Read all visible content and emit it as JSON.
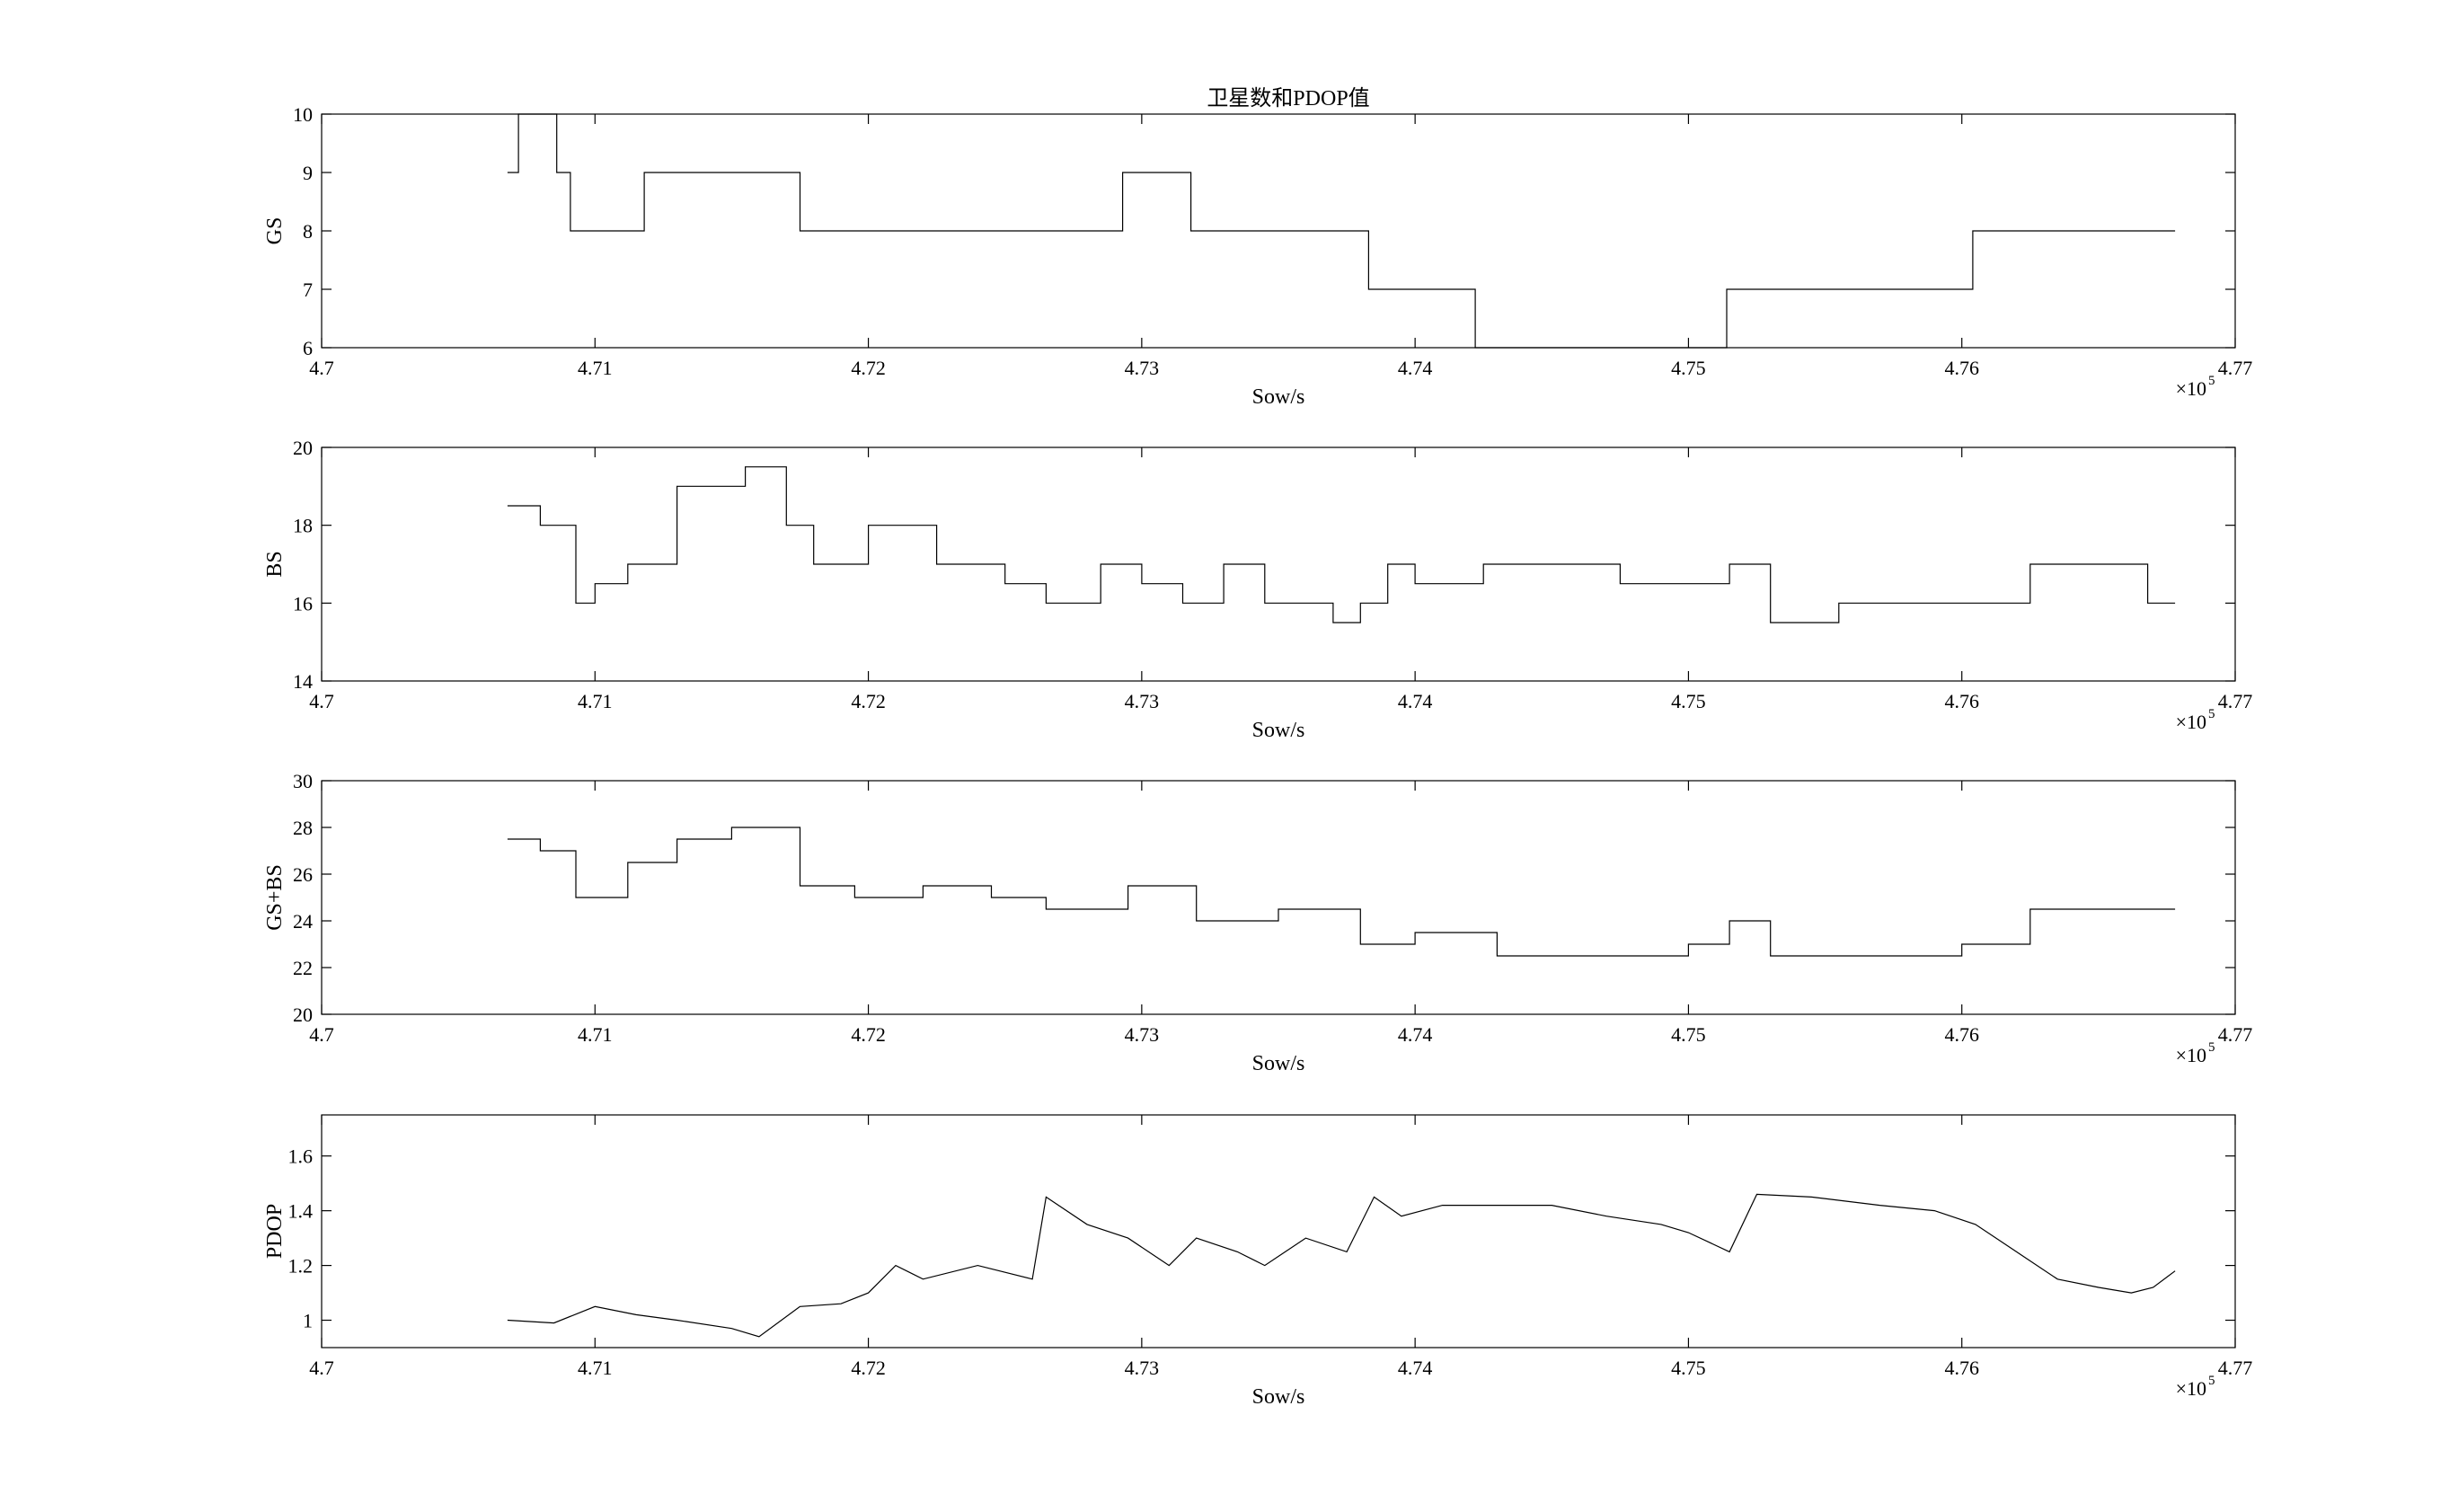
{
  "figure": {
    "title": "卫星数和PDOP值"
  },
  "chart_data": [
    {
      "type": "line",
      "id": "gs",
      "title": "卫星数和PDOP值",
      "xlabel": "Sow/s",
      "ylabel": "GS",
      "x_exponent_label": "×10",
      "x_exponent": "5",
      "xlim": [
        4.7,
        4.77
      ],
      "ylim": [
        6,
        10
      ],
      "xticks": [
        "4.7",
        "4.71",
        "4.72",
        "4.73",
        "4.74",
        "4.75",
        "4.76",
        "4.77"
      ],
      "yticks": [
        "6",
        "7",
        "8",
        "9",
        "10"
      ],
      "grid": false,
      "series": [
        {
          "x": [
            4.7068,
            4.7072,
            4.7072,
            4.7086,
            4.7086,
            4.7091,
            4.7091,
            4.7118,
            4.7118,
            4.7175,
            4.7175,
            4.7293,
            4.7293,
            4.7318,
            4.7318,
            4.7383,
            4.7383,
            4.7422,
            4.7422,
            4.7514,
            4.7514,
            4.7604,
            4.7604,
            4.7678
          ],
          "y": [
            9,
            9,
            10,
            10,
            9,
            9,
            8,
            8,
            9,
            9,
            8,
            8,
            9,
            9,
            8,
            8,
            7,
            7,
            6,
            6,
            7,
            7,
            8,
            8
          ]
        }
      ]
    },
    {
      "type": "line",
      "id": "bs",
      "xlabel": "Sow/s",
      "ylabel": "BS",
      "x_exponent_label": "×10",
      "x_exponent": "5",
      "xlim": [
        4.7,
        4.77
      ],
      "ylim": [
        14,
        20
      ],
      "xticks": [
        "4.7",
        "4.71",
        "4.72",
        "4.73",
        "4.74",
        "4.75",
        "4.76",
        "4.77"
      ],
      "yticks": [
        "14",
        "16",
        "18",
        "20"
      ],
      "grid": false,
      "series": [
        {
          "x": [
            4.7068,
            4.708,
            4.708,
            4.7093,
            4.7093,
            4.71,
            4.71,
            4.7112,
            4.7112,
            4.713,
            4.713,
            4.7155,
            4.7155,
            4.717,
            4.717,
            4.718,
            4.718,
            4.72,
            4.72,
            4.7225,
            4.7225,
            4.725,
            4.725,
            4.7265,
            4.7265,
            4.7285,
            4.7285,
            4.73,
            4.73,
            4.7315,
            4.7315,
            4.733,
            4.733,
            4.7345,
            4.7345,
            4.737,
            4.737,
            4.738,
            4.738,
            4.739,
            4.739,
            4.74,
            4.74,
            4.7425,
            4.7425,
            4.745,
            4.745,
            4.7475,
            4.7475,
            4.7515,
            4.7515,
            4.753,
            4.753,
            4.7555,
            4.7555,
            4.7595,
            4.7595,
            4.7625,
            4.7625,
            4.7655,
            4.7655,
            4.7668,
            4.7668,
            4.7678
          ],
          "y": [
            18.5,
            18.5,
            18,
            18,
            16,
            16,
            16.5,
            16.5,
            17,
            17,
            19,
            19,
            19.5,
            19.5,
            18,
            18,
            17,
            17,
            18,
            18,
            17,
            17,
            16.5,
            16.5,
            16,
            16,
            17,
            17,
            16.5,
            16.5,
            16,
            16,
            17,
            17,
            16,
            16,
            15.5,
            15.5,
            16,
            16,
            17,
            17,
            16.5,
            16.5,
            17,
            17,
            17,
            17,
            16.5,
            16.5,
            17,
            17,
            15.5,
            15.5,
            16,
            16,
            16,
            16,
            17,
            17,
            17,
            17,
            16,
            16
          ]
        }
      ]
    },
    {
      "type": "line",
      "id": "gs_bs",
      "xlabel": "Sow/s",
      "ylabel": "GS+BS",
      "x_exponent_label": "×10",
      "x_exponent": "5",
      "xlim": [
        4.7,
        4.77
      ],
      "ylim": [
        20,
        30
      ],
      "xticks": [
        "4.7",
        "4.71",
        "4.72",
        "4.73",
        "4.74",
        "4.75",
        "4.76",
        "4.77"
      ],
      "yticks": [
        "20",
        "22",
        "24",
        "26",
        "28",
        "30"
      ],
      "grid": false,
      "series": [
        {
          "x": [
            4.7068,
            4.708,
            4.708,
            4.7093,
            4.7093,
            4.7112,
            4.7112,
            4.713,
            4.713,
            4.715,
            4.715,
            4.7175,
            4.7175,
            4.7195,
            4.7195,
            4.722,
            4.722,
            4.7245,
            4.7245,
            4.7265,
            4.7265,
            4.7295,
            4.7295,
            4.732,
            4.732,
            4.735,
            4.735,
            4.738,
            4.738,
            4.74,
            4.74,
            4.743,
            4.743,
            4.75,
            4.75,
            4.7515,
            4.7515,
            4.753,
            4.753,
            4.76,
            4.76,
            4.7625,
            4.7625,
            4.7678
          ],
          "y": [
            27.5,
            27.5,
            27,
            27,
            25,
            25,
            26.5,
            26.5,
            27.5,
            27.5,
            28,
            28,
            25.5,
            25.5,
            25,
            25,
            25.5,
            25.5,
            25,
            25,
            24.5,
            24.5,
            25.5,
            25.5,
            24,
            24,
            24.5,
            24.5,
            23,
            23,
            23.5,
            23.5,
            22.5,
            22.5,
            23,
            23,
            24,
            24,
            22.5,
            22.5,
            23,
            23,
            24.5,
            24.5
          ]
        }
      ]
    },
    {
      "type": "line",
      "id": "pdop",
      "xlabel": "Sow/s",
      "ylabel": "PDOP",
      "x_exponent_label": "×10",
      "x_exponent": "5",
      "xlim": [
        4.7,
        4.77
      ],
      "ylim": [
        0.9,
        1.75
      ],
      "xticks": [
        "4.7",
        "4.71",
        "4.72",
        "4.73",
        "4.74",
        "4.75",
        "4.76",
        "4.77"
      ],
      "yticks": [
        "1",
        "1.2",
        "1.4",
        "1.6"
      ],
      "grid": false,
      "series": [
        {
          "x": [
            4.7068,
            4.7085,
            4.71,
            4.7115,
            4.713,
            4.715,
            4.716,
            4.7175,
            4.719,
            4.72,
            4.721,
            4.722,
            4.724,
            4.726,
            4.7265,
            4.728,
            4.7295,
            4.731,
            4.732,
            4.7335,
            4.7345,
            4.736,
            4.7375,
            4.7385,
            4.7395,
            4.741,
            4.743,
            4.745,
            4.747,
            4.749,
            4.75,
            4.7515,
            4.7525,
            4.7545,
            4.757,
            4.759,
            4.7605,
            4.762,
            4.7635,
            4.765,
            4.7662,
            4.767,
            4.7678
          ],
          "y": [
            1.0,
            0.99,
            1.05,
            1.02,
            1.0,
            0.97,
            0.94,
            1.05,
            1.06,
            1.1,
            1.2,
            1.15,
            1.2,
            1.15,
            1.45,
            1.35,
            1.3,
            1.2,
            1.3,
            1.25,
            1.2,
            1.3,
            1.25,
            1.45,
            1.38,
            1.42,
            1.42,
            1.42,
            1.38,
            1.35,
            1.32,
            1.25,
            1.46,
            1.45,
            1.42,
            1.4,
            1.35,
            1.25,
            1.15,
            1.12,
            1.1,
            1.12,
            1.18
          ]
        }
      ]
    }
  ]
}
